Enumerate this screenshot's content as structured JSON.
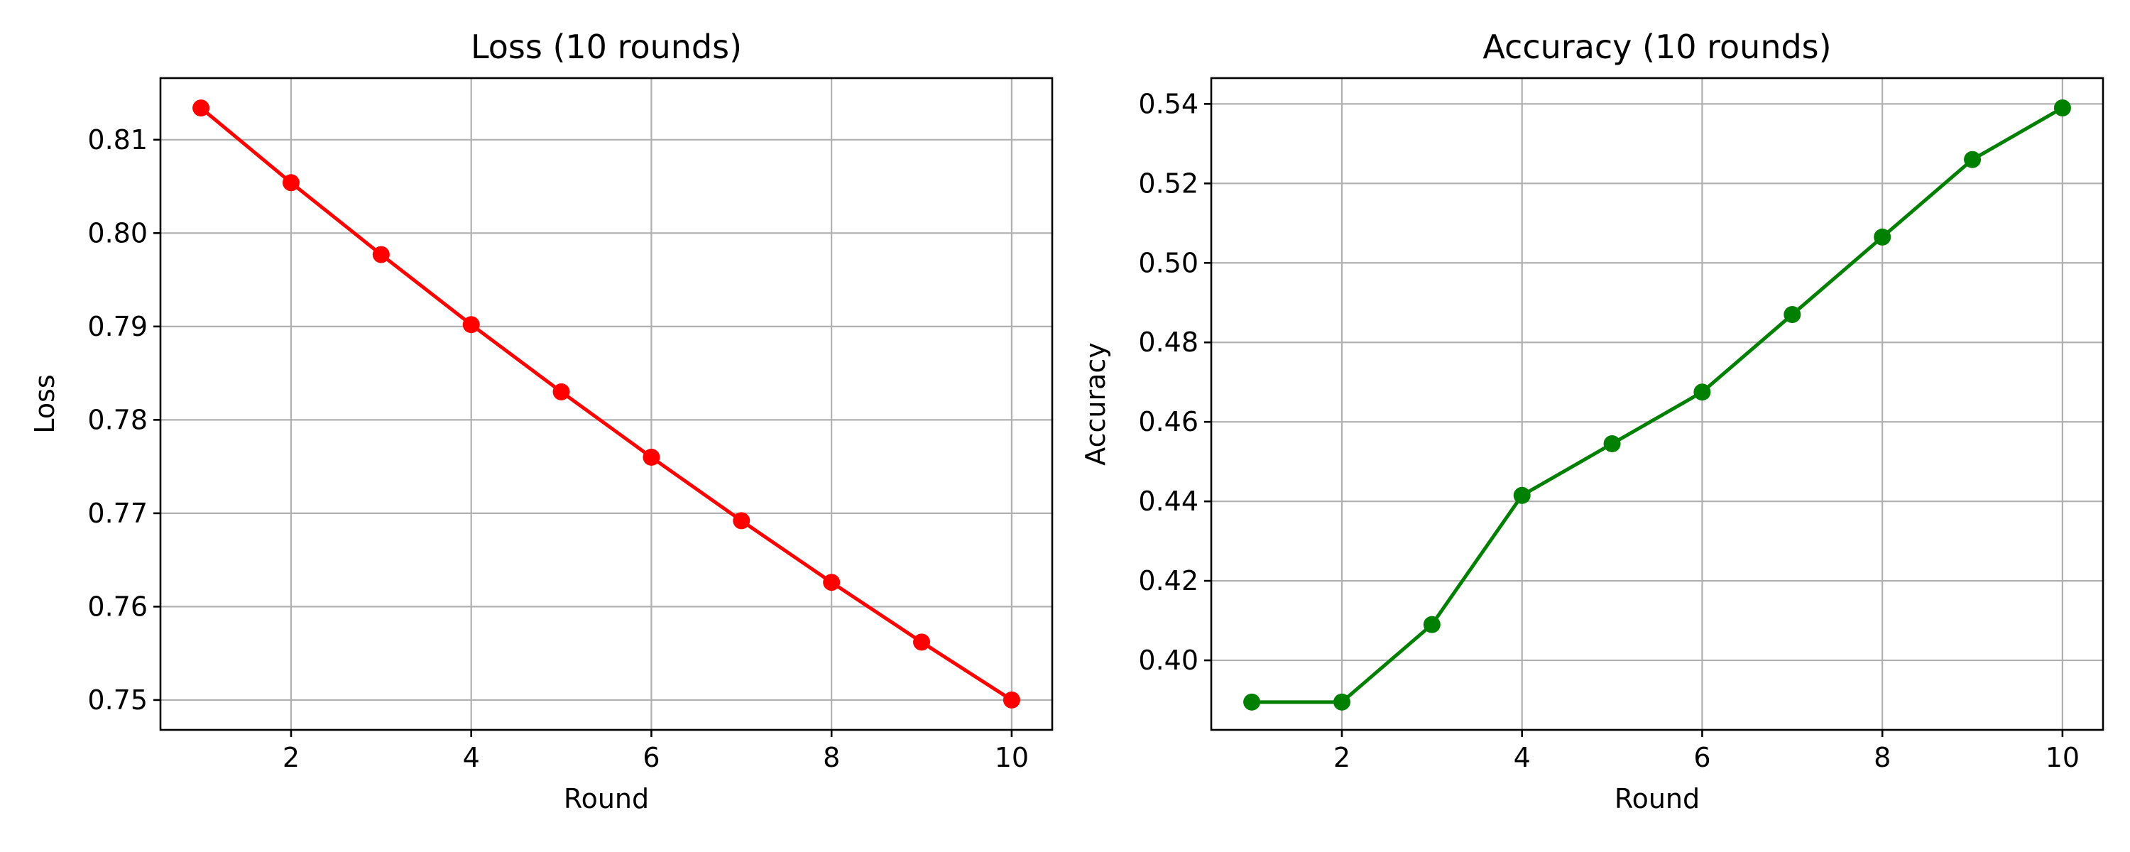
{
  "chart_data": [
    {
      "type": "line",
      "title": "Loss (10 rounds)",
      "xlabel": "Round",
      "ylabel": "Loss",
      "x": [
        1,
        2,
        3,
        4,
        5,
        6,
        7,
        8,
        9,
        10
      ],
      "series": [
        {
          "values": [
            0.8134,
            0.8054,
            0.7977,
            0.7902,
            0.783,
            0.776,
            0.7692,
            0.7626,
            0.7562,
            0.75
          ],
          "color": "#ff0000",
          "marker": "circle"
        }
      ],
      "xlim": [
        0.55,
        10.45
      ],
      "ylim": [
        0.7468,
        0.8166
      ],
      "xticks": [
        2,
        4,
        6,
        8,
        10
      ],
      "yticks": [
        0.75,
        0.76,
        0.77,
        0.78,
        0.79,
        0.8,
        0.81
      ],
      "ytick_labels": [
        "0.75",
        "0.76",
        "0.77",
        "0.78",
        "0.79",
        "0.80",
        "0.81"
      ],
      "grid": true
    },
    {
      "type": "line",
      "title": "Accuracy (10 rounds)",
      "xlabel": "Round",
      "ylabel": "Accuracy",
      "x": [
        1,
        2,
        3,
        4,
        5,
        6,
        7,
        8,
        9,
        10
      ],
      "series": [
        {
          "values": [
            0.3895,
            0.3895,
            0.409,
            0.4415,
            0.4545,
            0.4675,
            0.487,
            0.5065,
            0.526,
            0.539
          ],
          "color": "#008000",
          "marker": "circle"
        }
      ],
      "xlim": [
        0.55,
        10.45
      ],
      "ylim": [
        0.3825,
        0.5465
      ],
      "xticks": [
        2,
        4,
        6,
        8,
        10
      ],
      "yticks": [
        0.4,
        0.42,
        0.44,
        0.46,
        0.48,
        0.5,
        0.52,
        0.54
      ],
      "ytick_labels": [
        "0.40",
        "0.42",
        "0.44",
        "0.46",
        "0.48",
        "0.50",
        "0.52",
        "0.54"
      ],
      "grid": true
    }
  ]
}
